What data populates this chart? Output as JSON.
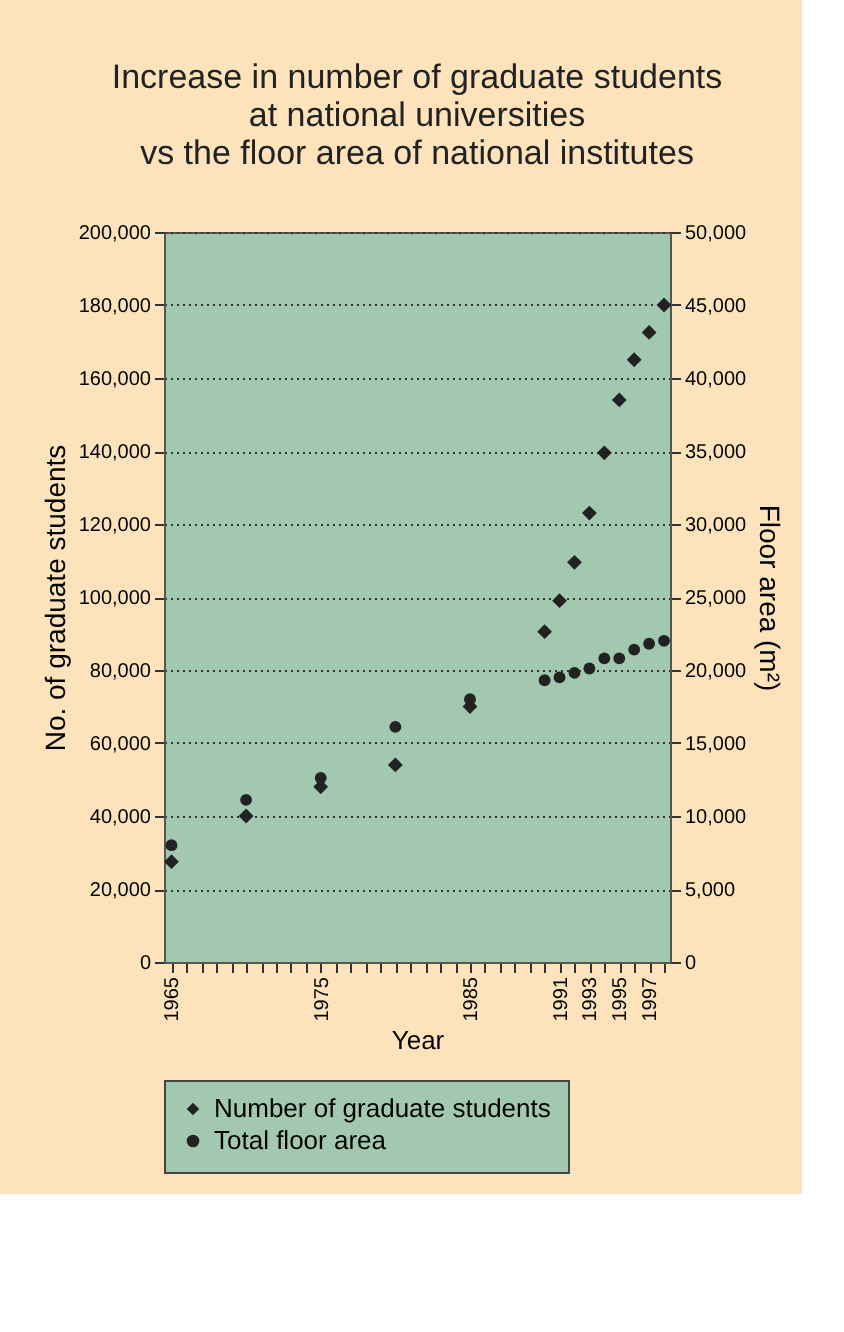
{
  "chart_data": {
    "type": "scatter",
    "title": [
      "Increase in number of graduate students",
      "at national universities",
      "vs the floor area of national institutes"
    ],
    "xlabel": "Year",
    "ylabel": "No. of graduate students",
    "y2label": "Floor area (m²)",
    "series": [
      {
        "name": "Number of graduate students",
        "color": "#222222",
        "marker": "diamond",
        "x": [
          1965,
          1970,
          1975,
          1980,
          1985,
          1990,
          1991,
          1992,
          1993,
          1994,
          1995,
          1996,
          1997,
          1998
        ],
        "values": [
          27500,
          40000,
          48000,
          54000,
          70000,
          90500,
          99000,
          109500,
          123000,
          139500,
          154000,
          165000,
          172500,
          180000
        ]
      },
      {
        "name": "Total floor area",
        "color": "#222222",
        "marker": "circle",
        "axis": "y2",
        "x": [
          1965,
          1970,
          1975,
          1980,
          1985,
          1990,
          1991,
          1992,
          1993,
          1994,
          1995,
          1996,
          1997,
          1998
        ],
        "values": [
          8000,
          11100,
          12600,
          16100,
          18000,
          19300,
          19500,
          19800,
          20100,
          20800,
          20800,
          21400,
          21800,
          22000
        ]
      }
    ],
    "xlim": [
      1964.5,
      1998.4
    ],
    "xticks": [
      1965,
      {
        "value": 1966,
        "label": null
      },
      {
        "value": 1967,
        "label": null
      },
      {
        "value": 1968,
        "label": null
      },
      {
        "value": 1969,
        "label": null
      },
      {
        "value": 1970,
        "label": null
      },
      {
        "value": 1971,
        "label": null
      },
      {
        "value": 1972,
        "label": null
      },
      {
        "value": 1973,
        "label": null
      },
      {
        "value": 1974,
        "label": null
      },
      1975,
      {
        "value": 1976,
        "label": null
      },
      {
        "value": 1977,
        "label": null
      },
      {
        "value": 1978,
        "label": null
      },
      {
        "value": 1979,
        "label": null
      },
      {
        "value": 1980,
        "label": null
      },
      {
        "value": 1981,
        "label": null
      },
      {
        "value": 1982,
        "label": null
      },
      {
        "value": 1983,
        "label": null
      },
      {
        "value": 1984,
        "label": null
      },
      1985,
      {
        "value": 1986,
        "label": null
      },
      {
        "value": 1987,
        "label": null
      },
      {
        "value": 1988,
        "label": null
      },
      {
        "value": 1989,
        "label": null
      },
      {
        "value": 1990,
        "label": null
      },
      1991,
      {
        "value": 1992,
        "label": null
      },
      1993,
      {
        "value": 1994,
        "label": null
      },
      1995,
      {
        "value": 1996,
        "label": null
      },
      1997,
      {
        "value": 1998,
        "label": null
      }
    ],
    "ylim": [
      0,
      200000
    ],
    "yticks": [
      {
        "value": 0,
        "label": "0"
      },
      {
        "value": 20000,
        "label": "20,000"
      },
      {
        "value": 40000,
        "label": "40,000"
      },
      {
        "value": 60000,
        "label": "60,000"
      },
      {
        "value": 80000,
        "label": "80,000"
      },
      {
        "value": 100000,
        "label": "100,000"
      },
      {
        "value": 120000,
        "label": "120,000"
      },
      {
        "value": 140000,
        "label": "140,000"
      },
      {
        "value": 160000,
        "label": "160,000"
      },
      {
        "value": 180000,
        "label": "180,000"
      },
      {
        "value": 200000,
        "label": "200,000"
      }
    ],
    "y2lim": [
      0,
      50000
    ],
    "y2ticks": [
      {
        "value": 0,
        "label": "0"
      },
      {
        "value": 5000,
        "label": "5,000"
      },
      {
        "value": 10000,
        "label": "10,000"
      },
      {
        "value": 15000,
        "label": "15,000"
      },
      {
        "value": 20000,
        "label": "20,000"
      },
      {
        "value": 25000,
        "label": "25,000"
      },
      {
        "value": 30000,
        "label": "30,000"
      },
      {
        "value": 35000,
        "label": "35,000"
      },
      {
        "value": 40000,
        "label": "40,000"
      },
      {
        "value": 45000,
        "label": "45,000"
      },
      {
        "value": 50000,
        "label": "50,000"
      }
    ],
    "grid": "y",
    "legend": "bottom"
  }
}
